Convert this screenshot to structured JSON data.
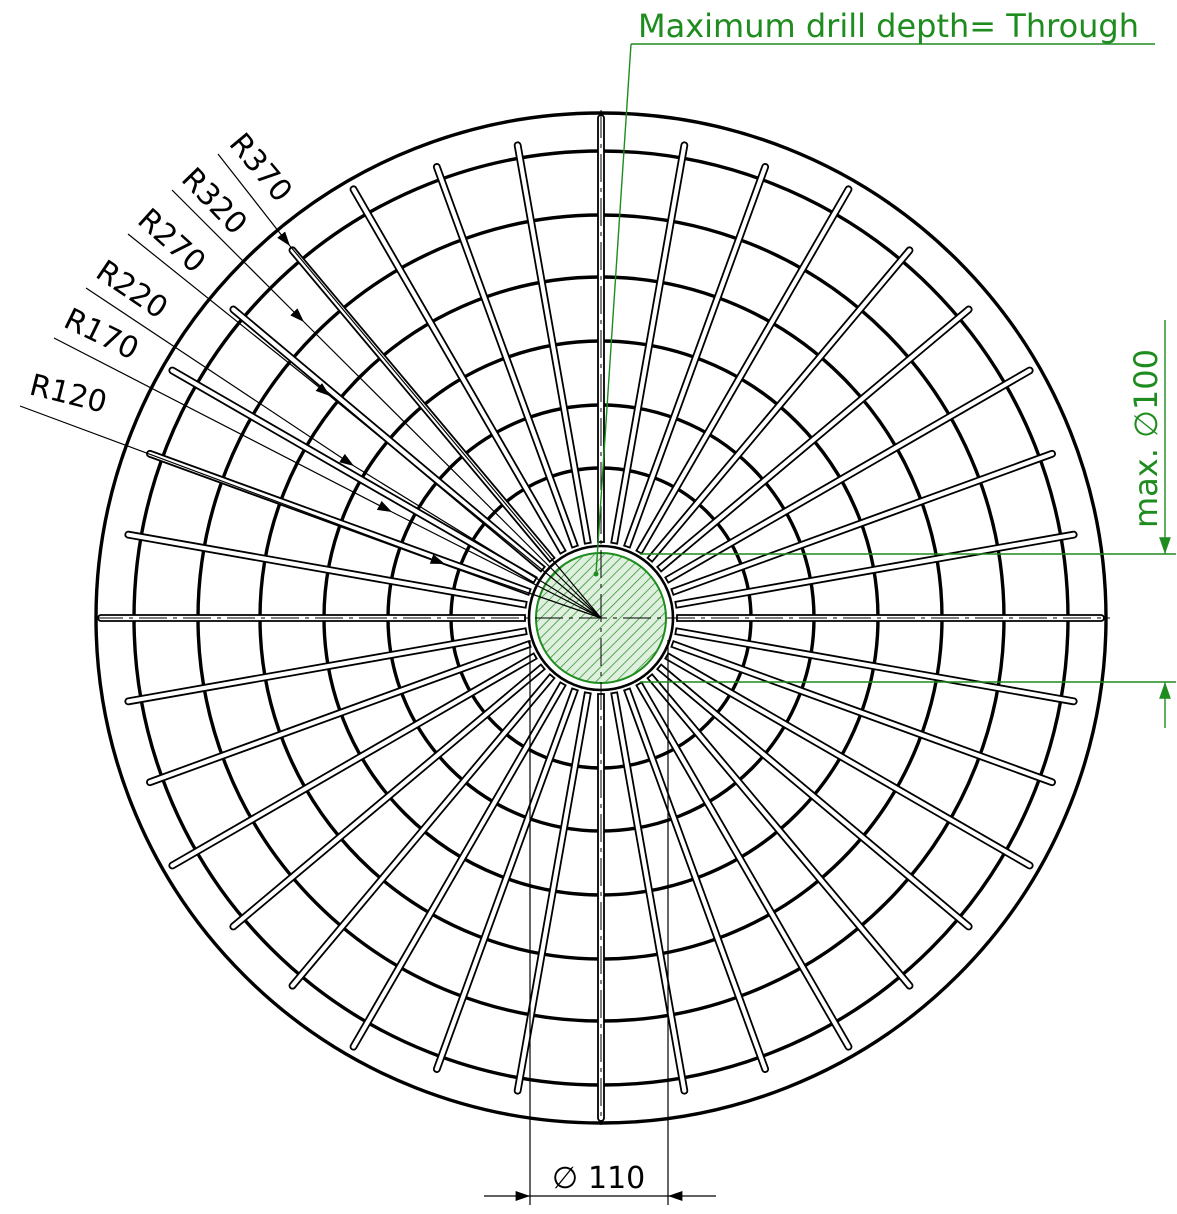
{
  "drawing": {
    "radius_labels": [
      "R120",
      "R170",
      "R220",
      "R270",
      "R320",
      "R370"
    ],
    "bore_label": "110",
    "hole_label": "max. ∅100",
    "note_label": "Maximum drill depth= Through",
    "diameter_symbol": "∅",
    "colors": {
      "line": "#000000",
      "annotation": "#1e8c1e",
      "hatch_fill": "#dff0df"
    }
  }
}
